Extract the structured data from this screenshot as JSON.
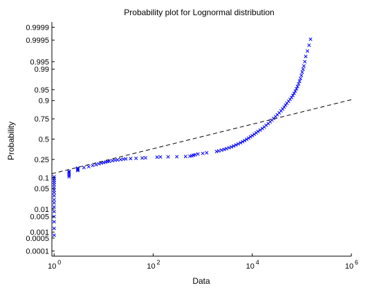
{
  "chart_data": {
    "type": "scatter",
    "title": "Probability plot for Lognormal distribution",
    "xlabel": "Data",
    "ylabel": "Probability",
    "xscale": "log",
    "yscale": "normal-probability",
    "xlim": [
      0.9,
      1000000
    ],
    "ylim": [
      5e-05,
      0.99995
    ],
    "x_ticks": [
      {
        "value": 1,
        "base": "10",
        "exp": "0"
      },
      {
        "value": 100,
        "base": "10",
        "exp": "2"
      },
      {
        "value": 10000,
        "base": "10",
        "exp": "4"
      },
      {
        "value": 1000000,
        "base": "10",
        "exp": "6"
      }
    ],
    "y_ticks": [
      {
        "value": 0.0001,
        "label": "0.0001"
      },
      {
        "value": 0.0005,
        "label": "0.0005"
      },
      {
        "value": 0.001,
        "label": "0.001"
      },
      {
        "value": 0.005,
        "label": "0.005"
      },
      {
        "value": 0.01,
        "label": "0.01"
      },
      {
        "value": 0.05,
        "label": "0.05"
      },
      {
        "value": 0.1,
        "label": "0.1"
      },
      {
        "value": 0.25,
        "label": "0.25"
      },
      {
        "value": 0.5,
        "label": "0.5"
      },
      {
        "value": 0.75,
        "label": "0.75"
      },
      {
        "value": 0.9,
        "label": "0.9"
      },
      {
        "value": 0.95,
        "label": "0.95"
      },
      {
        "value": 0.99,
        "label": "0.99"
      },
      {
        "value": 0.995,
        "label": "0.995"
      },
      {
        "value": 0.9995,
        "label": "0.9995"
      },
      {
        "value": 0.9999,
        "label": "0.9999"
      }
    ],
    "grid": false,
    "marker_color": "#0000ff",
    "reference_line_color": "#000000",
    "series": [
      {
        "marker": "x",
        "points": [
          [
            1,
            0.0007
          ],
          [
            1,
            0.0015
          ],
          [
            1,
            0.003
          ],
          [
            1,
            0.005
          ],
          [
            1,
            0.008
          ],
          [
            1,
            0.012
          ],
          [
            1,
            0.017
          ],
          [
            1,
            0.022
          ],
          [
            1,
            0.03
          ],
          [
            1,
            0.038
          ],
          [
            1,
            0.045
          ],
          [
            1,
            0.055
          ],
          [
            1,
            0.065
          ],
          [
            1,
            0.075
          ],
          [
            1,
            0.085
          ],
          [
            1,
            0.095
          ],
          [
            1,
            0.105
          ],
          [
            2,
            0.105
          ],
          [
            2,
            0.115
          ],
          [
            2,
            0.125
          ],
          [
            2,
            0.135
          ],
          [
            2,
            0.142
          ],
          [
            3,
            0.148
          ],
          [
            3,
            0.155
          ],
          [
            3,
            0.162
          ],
          [
            3,
            0.168
          ],
          [
            4,
            0.172
          ],
          [
            5,
            0.18
          ],
          [
            6,
            0.19
          ],
          [
            7,
            0.198
          ],
          [
            8,
            0.206
          ],
          [
            9,
            0.213
          ],
          [
            10,
            0.218
          ],
          [
            11,
            0.223
          ],
          [
            12,
            0.228
          ],
          [
            13,
            0.232
          ],
          [
            15,
            0.237
          ],
          [
            17,
            0.241
          ],
          [
            19,
            0.245
          ],
          [
            22,
            0.249
          ],
          [
            25,
            0.253
          ],
          [
            28,
            0.256
          ],
          [
            35,
            0.259
          ],
          [
            45,
            0.262
          ],
          [
            60,
            0.265
          ],
          [
            70,
            0.267
          ],
          [
            120,
            0.275
          ],
          [
            140,
            0.277
          ],
          [
            200,
            0.278
          ],
          [
            300,
            0.28
          ],
          [
            450,
            0.282
          ],
          [
            550,
            0.285
          ],
          [
            600,
            0.29
          ],
          [
            650,
            0.296
          ],
          [
            700,
            0.302
          ],
          [
            800,
            0.31
          ],
          [
            1000,
            0.318
          ],
          [
            1200,
            0.325
          ],
          [
            1900,
            0.34
          ],
          [
            2100,
            0.348
          ],
          [
            2400,
            0.357
          ],
          [
            2700,
            0.366
          ],
          [
            3000,
            0.376
          ],
          [
            3400,
            0.387
          ],
          [
            3800,
            0.398
          ],
          [
            4200,
            0.41
          ],
          [
            4700,
            0.423
          ],
          [
            5200,
            0.437
          ],
          [
            5800,
            0.451
          ],
          [
            6400,
            0.466
          ],
          [
            7000,
            0.481
          ],
          [
            7700,
            0.497
          ],
          [
            8400,
            0.513
          ],
          [
            9200,
            0.53
          ],
          [
            10000,
            0.546
          ],
          [
            11000,
            0.564
          ],
          [
            12000,
            0.582
          ],
          [
            13000,
            0.6
          ],
          [
            14500,
            0.619
          ],
          [
            16000,
            0.638
          ],
          [
            17500,
            0.657
          ],
          [
            19000,
            0.677
          ],
          [
            21000,
            0.697
          ],
          [
            23000,
            0.717
          ],
          [
            25000,
            0.736
          ],
          [
            27000,
            0.755
          ],
          [
            29500,
            0.773
          ],
          [
            32000,
            0.791
          ],
          [
            35000,
            0.809
          ],
          [
            38000,
            0.826
          ],
          [
            41000,
            0.842
          ],
          [
            44000,
            0.857
          ],
          [
            47000,
            0.871
          ],
          [
            50000,
            0.884
          ],
          [
            54000,
            0.896
          ],
          [
            58000,
            0.907
          ],
          [
            62000,
            0.917
          ],
          [
            66000,
            0.927
          ],
          [
            70000,
            0.936
          ],
          [
            74000,
            0.945
          ],
          [
            78000,
            0.953
          ],
          [
            82000,
            0.96
          ],
          [
            86000,
            0.967
          ],
          [
            90000,
            0.973
          ],
          [
            94000,
            0.978
          ],
          [
            98000,
            0.983
          ],
          [
            102000,
            0.987
          ],
          [
            106000,
            0.99
          ],
          [
            110000,
            0.9925
          ],
          [
            115000,
            0.995
          ],
          [
            120000,
            0.997
          ],
          [
            130000,
            0.9983
          ],
          [
            140000,
            0.9991
          ],
          [
            150000,
            0.99955
          ]
        ]
      }
    ],
    "reference_line": {
      "style": "dashed",
      "x": [
        0.9,
        1000000
      ],
      "y": [
        0.125,
        0.905
      ]
    }
  }
}
